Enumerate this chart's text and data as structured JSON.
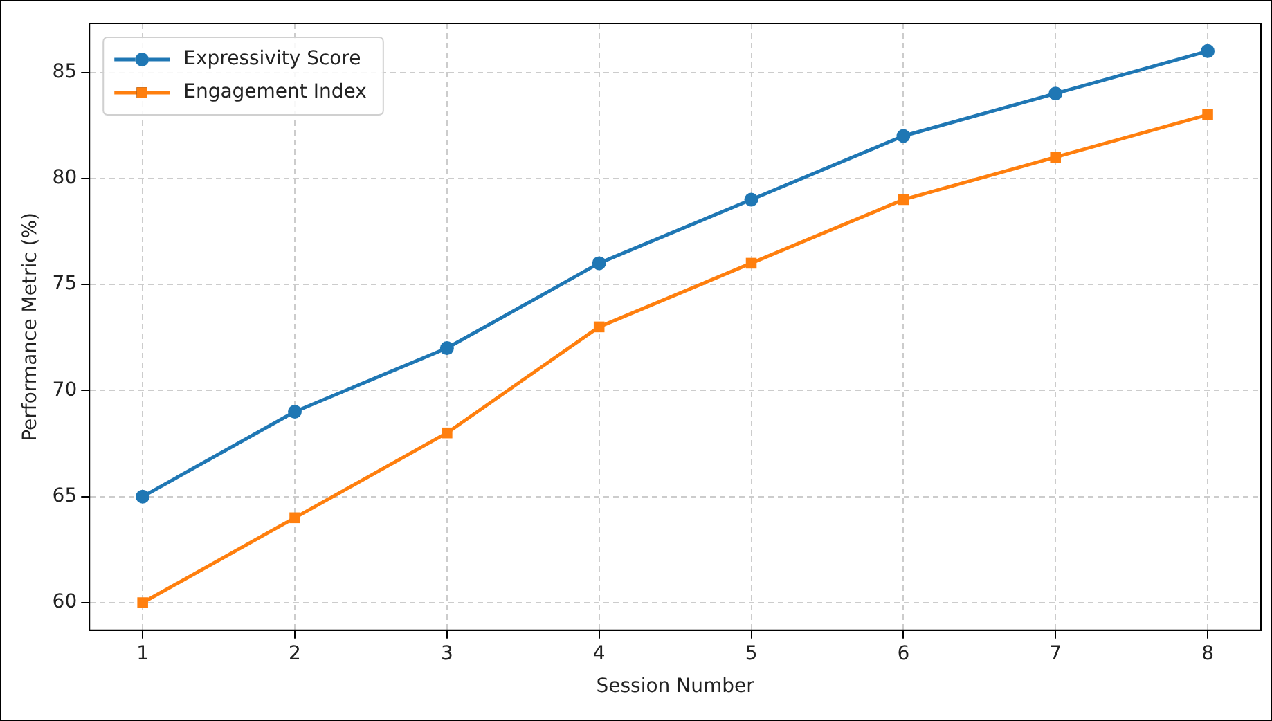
{
  "chart_data": {
    "type": "line",
    "xlabel": "Session Number",
    "ylabel": "Performance Metric (%)",
    "x": [
      1,
      2,
      3,
      4,
      5,
      6,
      7,
      8
    ],
    "series": [
      {
        "name": "Expressivity Score",
        "color": "#1f77b4",
        "marker": "circle",
        "values": [
          65,
          69,
          72,
          76,
          79,
          82,
          84,
          86
        ]
      },
      {
        "name": "Engagement Index",
        "color": "#ff7f0e",
        "marker": "square",
        "values": [
          60,
          64,
          68,
          73,
          76,
          79,
          81,
          83
        ]
      }
    ],
    "xlim": [
      0.65,
      8.35
    ],
    "xticks": [
      1,
      2,
      3,
      4,
      5,
      6,
      7,
      8
    ],
    "ylim": [
      58.7,
      87.3
    ],
    "yticks": [
      60,
      65,
      70,
      75,
      80,
      85
    ],
    "grid": true,
    "legend": "top left",
    "line_style": "solid"
  }
}
